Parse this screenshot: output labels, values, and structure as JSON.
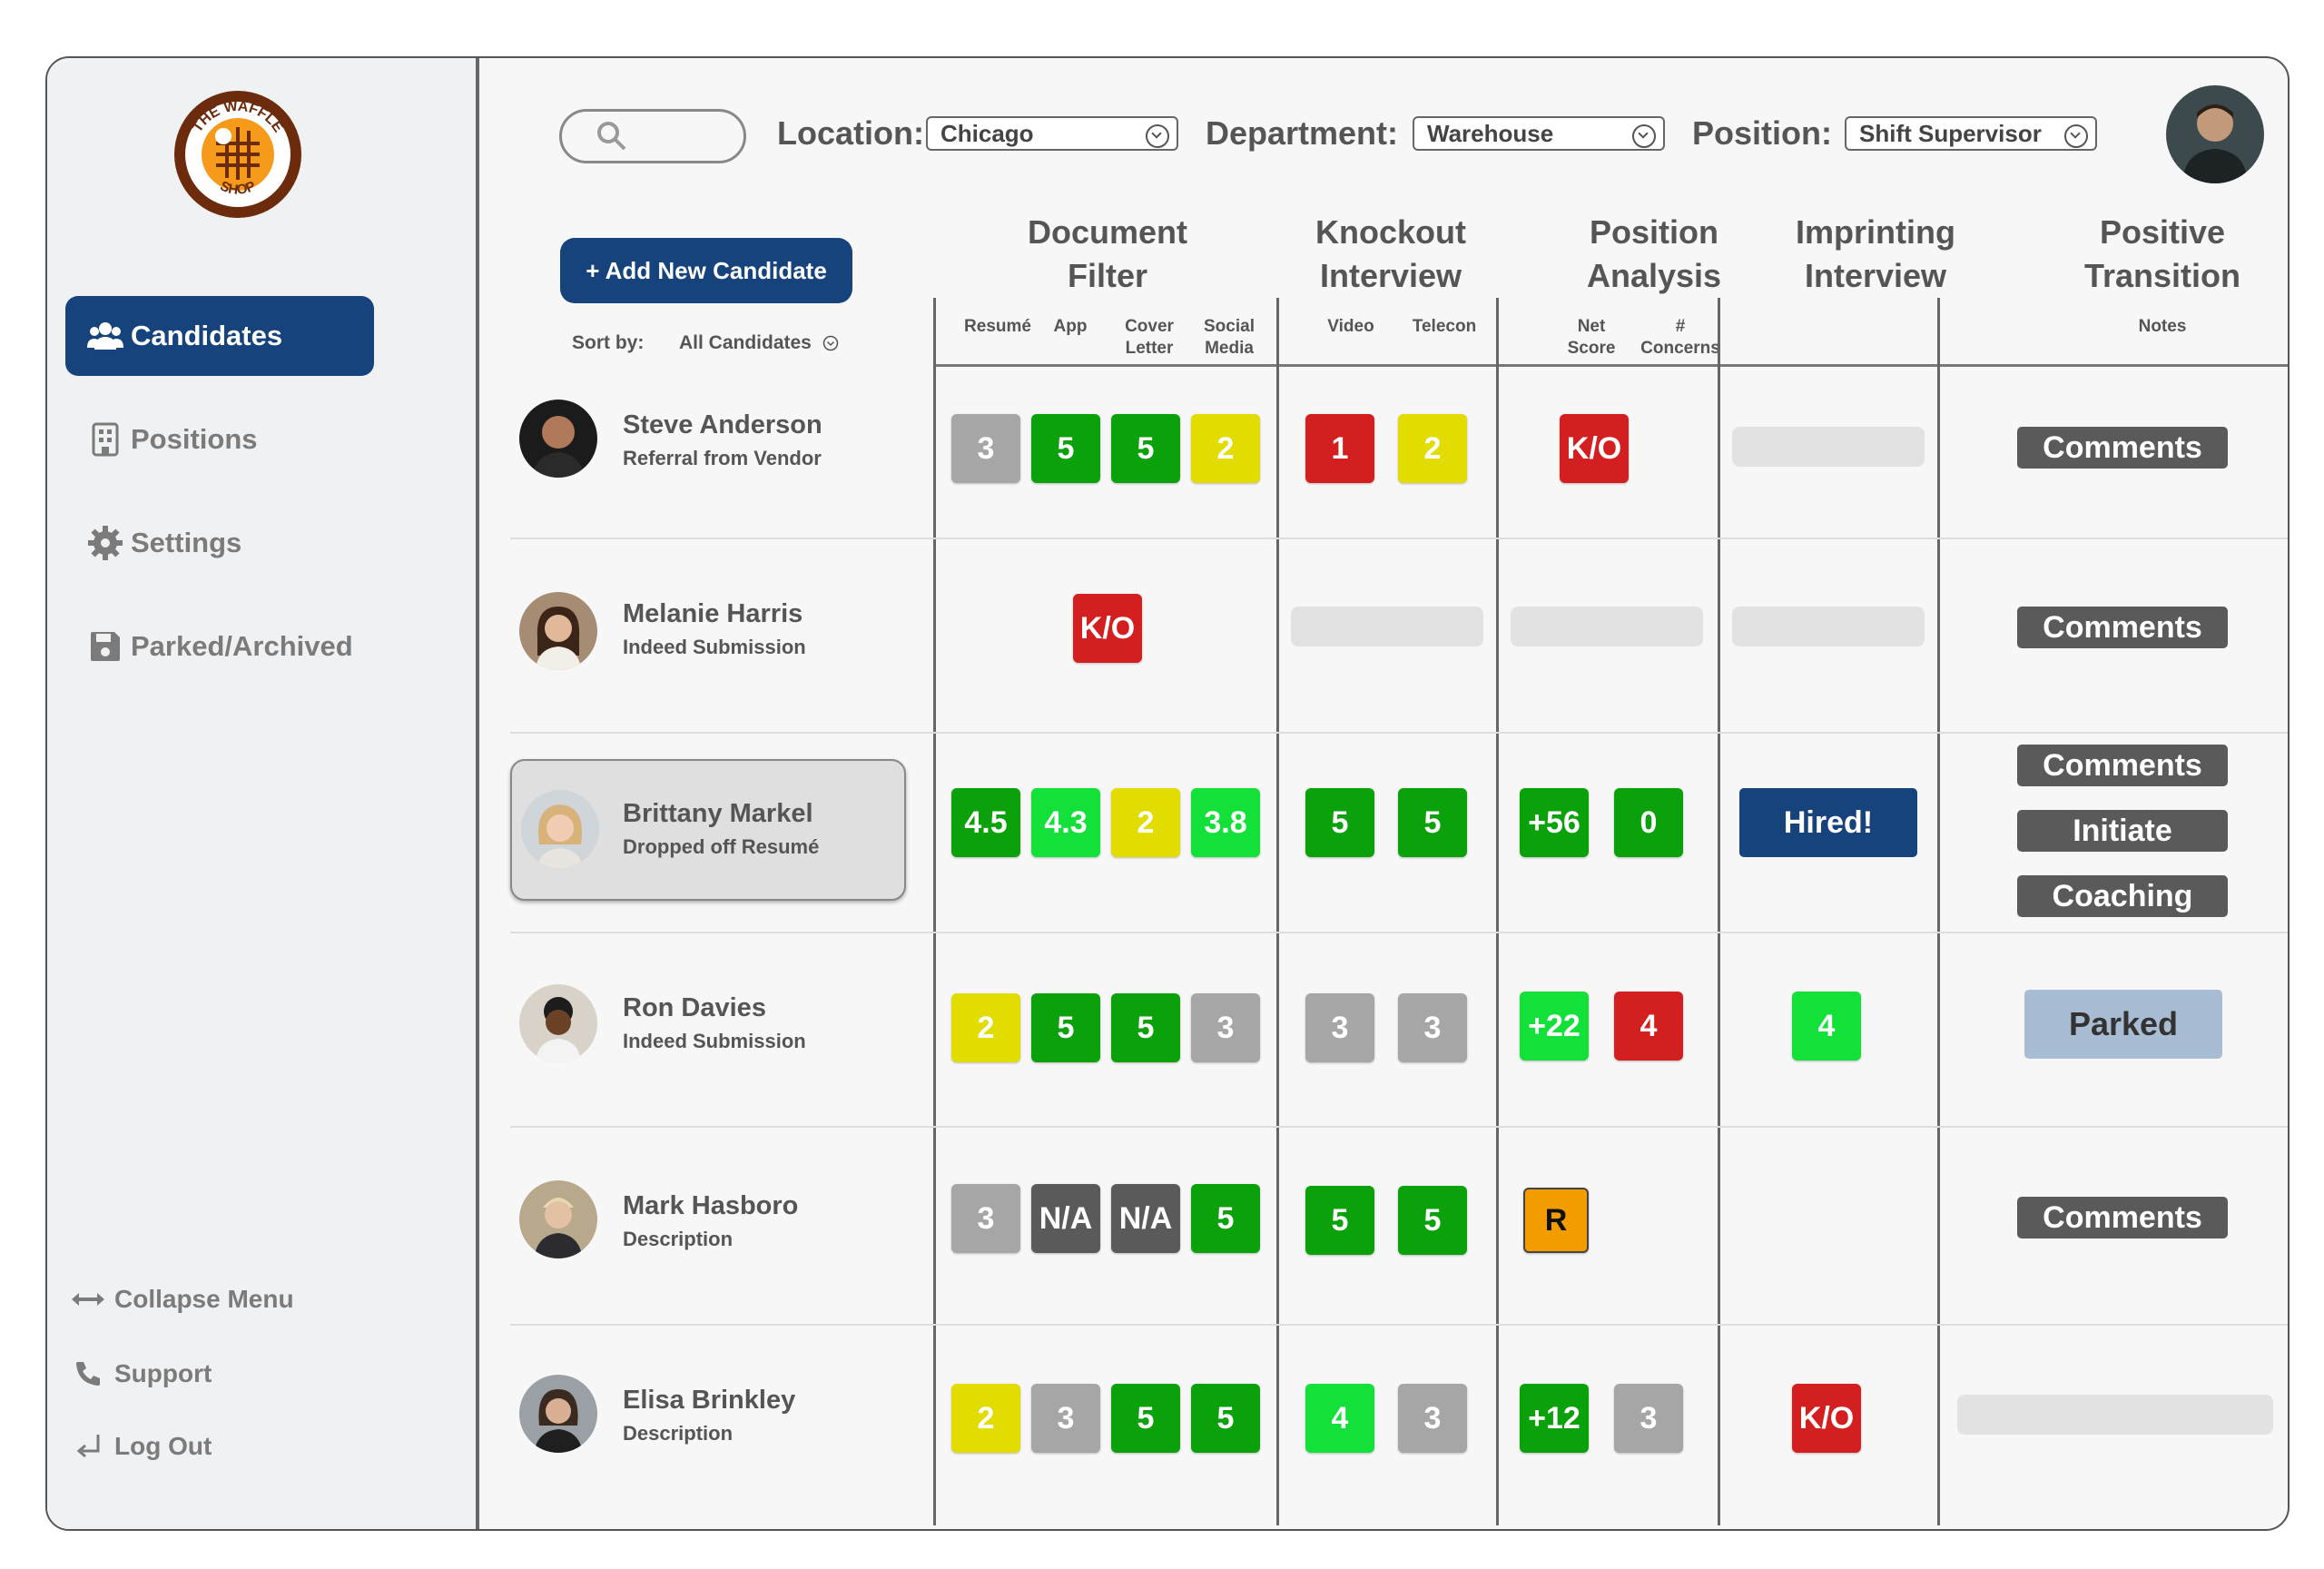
{
  "sidebar": {
    "logo_text_top": "THE WAFFLE",
    "logo_text_bottom": "SHOP",
    "nav": [
      {
        "label": "Candidates",
        "icon": "users-icon",
        "active": true
      },
      {
        "label": "Positions",
        "icon": "building-icon"
      },
      {
        "label": "Settings",
        "icon": "gear-icon"
      },
      {
        "label": "Parked/Archived",
        "icon": "save-icon"
      }
    ],
    "bottom": [
      {
        "label": "Collapse Menu",
        "icon": "arrows-horizontal-icon"
      },
      {
        "label": "Support",
        "icon": "phone-icon"
      },
      {
        "label": "Log Out",
        "icon": "logout-icon"
      }
    ]
  },
  "filters": {
    "location_label": "Location:",
    "location_value": "Chicago",
    "department_label": "Department:",
    "department_value": "Warehouse",
    "position_label": "Position:",
    "position_value": "Shift Supervisor"
  },
  "actions": {
    "add_candidate": "+ Add New Candidate",
    "sort_label": "Sort by:",
    "sort_value": "All Candidates"
  },
  "columns": {
    "document_filter": [
      "Document",
      "Filter"
    ],
    "knockout_interview": [
      "Knockout",
      "Interview"
    ],
    "position_analysis": [
      "Position",
      "Analysis"
    ],
    "imprinting_interview": [
      "Imprinting",
      "Interview"
    ],
    "positive_transition": [
      "Positive",
      "Transition"
    ],
    "sub": {
      "resume": "Resumé",
      "app": "App",
      "cover": [
        "Cover",
        "Letter"
      ],
      "social": [
        "Social",
        "Media"
      ],
      "video": "Video",
      "telecon": "Telecon",
      "net": [
        "Net",
        "Score"
      ],
      "concerns": [
        "#",
        "Concerns"
      ],
      "notes": "Notes"
    }
  },
  "colors": {
    "navy": "#17437d",
    "gray": "#a6a6a6",
    "dark_gray": "#5a5a5a",
    "green": "#0aa10a",
    "bright_green": "#14e03a",
    "yellow": "#e2dc00",
    "red": "#d31f1f",
    "orange": "#f39c00"
  },
  "candidates": [
    {
      "name": "Steve Anderson",
      "source": "Referral from Vendor",
      "doc": [
        "3",
        "5",
        "5",
        "2"
      ],
      "knock": [
        "1",
        "2"
      ],
      "analysis": [
        "K/O"
      ],
      "notes": [
        "Comments"
      ]
    },
    {
      "name": "Melanie Harris",
      "source": "Indeed Submission",
      "doc": [
        "K/O"
      ],
      "notes": [
        "Comments"
      ]
    },
    {
      "name": "Brittany Markel",
      "source": "Dropped off Resumé",
      "doc": [
        "4.5",
        "4.3",
        "2",
        "3.8"
      ],
      "knock": [
        "5",
        "5"
      ],
      "analysis": [
        "+56",
        "0"
      ],
      "imprint": "Hired!",
      "notes": [
        "Comments",
        "Initiate",
        "Coaching"
      ]
    },
    {
      "name": "Ron Davies",
      "source": "Indeed Submission",
      "doc": [
        "2",
        "5",
        "5",
        "3"
      ],
      "knock": [
        "3",
        "3"
      ],
      "analysis": [
        "+22",
        "4"
      ],
      "imprint": "4",
      "notes": [
        "Parked"
      ]
    },
    {
      "name": "Mark Hasboro",
      "source": "Description",
      "doc": [
        "3",
        "N/A",
        "N/A",
        "5"
      ],
      "knock": [
        "5",
        "5"
      ],
      "analysis": [
        "R"
      ],
      "notes": [
        "Comments"
      ]
    },
    {
      "name": "Elisa Brinkley",
      "source": "Description",
      "doc": [
        "2",
        "3",
        "5",
        "5"
      ],
      "knock": [
        "4",
        "3"
      ],
      "analysis": [
        "+12",
        "3"
      ],
      "imprint": "K/O"
    }
  ]
}
